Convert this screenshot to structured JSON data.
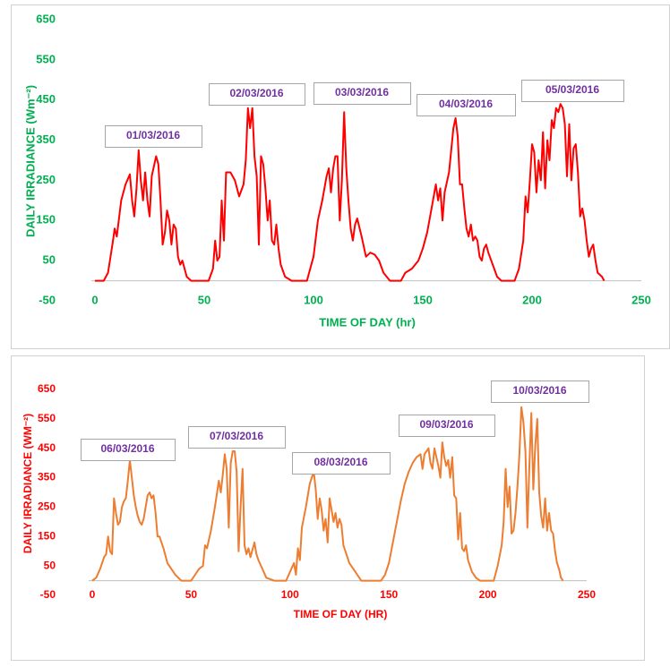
{
  "chart_data": [
    {
      "type": "line",
      "y_label": "DAILY IRRADIANCE (Wm⁻²)",
      "x_label": "TIME OF DAY (hr)",
      "color": "#ff0000",
      "axis_color": "#00b050",
      "annotation_color": "#7030a0",
      "annotations": [
        "01/03/2016",
        "02/03/2016",
        "03/03/2016",
        "04/03/2016",
        "05/03/2016"
      ],
      "xlim": [
        0,
        250
      ],
      "xticks": [
        0,
        50,
        100,
        150,
        200,
        250
      ],
      "ylim": [
        -50,
        650
      ],
      "yticks": [
        -50,
        50,
        150,
        250,
        350,
        450,
        550,
        650
      ],
      "x": [
        0,
        4,
        6,
        8,
        9,
        10,
        12,
        14,
        16,
        17,
        18,
        19,
        20,
        21,
        22,
        23,
        24,
        25,
        26,
        28,
        29,
        30,
        31,
        32,
        33,
        34,
        35,
        36,
        37,
        38,
        39,
        40,
        42,
        44,
        52,
        54,
        55,
        56,
        57,
        58,
        59,
        60,
        62,
        64,
        66,
        68,
        69,
        70,
        71,
        72,
        73,
        74,
        75,
        76,
        77,
        78,
        79,
        80,
        81,
        82,
        83,
        84,
        85,
        87,
        90,
        97,
        98,
        100,
        102,
        104,
        106,
        107,
        108,
        109,
        110,
        111,
        112,
        113,
        114,
        115,
        116,
        117,
        118,
        119,
        120,
        122,
        124,
        126,
        128,
        130,
        132,
        135,
        140,
        142,
        145,
        148,
        150,
        152,
        154,
        156,
        157,
        158,
        159,
        160,
        162,
        164,
        165,
        166,
        167,
        168,
        169,
        170,
        171,
        172,
        173,
        174,
        175,
        176,
        177,
        178,
        179,
        180,
        182,
        184,
        186,
        192,
        194,
        196,
        197,
        198,
        199,
        200,
        201,
        202,
        203,
        204,
        205,
        206,
        207,
        208,
        209,
        210,
        211,
        212,
        213,
        214,
        215,
        216,
        217,
        218,
        219,
        220,
        221,
        222,
        223,
        224,
        225,
        226,
        227,
        228,
        229,
        230,
        232,
        233
      ],
      "values": [
        0,
        0,
        20,
        90,
        130,
        110,
        200,
        240,
        265,
        200,
        160,
        230,
        325,
        250,
        200,
        270,
        200,
        160,
        260,
        310,
        290,
        200,
        90,
        120,
        175,
        150,
        90,
        140,
        130,
        60,
        40,
        50,
        10,
        0,
        0,
        30,
        100,
        50,
        60,
        200,
        100,
        270,
        270,
        250,
        210,
        240,
        300,
        430,
        380,
        430,
        310,
        260,
        90,
        310,
        290,
        230,
        150,
        200,
        100,
        90,
        140,
        80,
        40,
        10,
        0,
        0,
        20,
        60,
        150,
        200,
        260,
        280,
        220,
        280,
        310,
        310,
        150,
        250,
        420,
        280,
        200,
        130,
        100,
        140,
        155,
        110,
        60,
        70,
        65,
        50,
        20,
        0,
        0,
        20,
        30,
        50,
        80,
        120,
        180,
        240,
        200,
        230,
        150,
        220,
        270,
        380,
        405,
        360,
        240,
        240,
        180,
        130,
        110,
        140,
        100,
        110,
        100,
        60,
        50,
        80,
        90,
        70,
        40,
        10,
        0,
        0,
        30,
        100,
        210,
        170,
        250,
        340,
        320,
        220,
        300,
        250,
        370,
        230,
        350,
        300,
        400,
        380,
        430,
        420,
        440,
        430,
        390,
        260,
        390,
        250,
        330,
        340,
        270,
        160,
        180,
        150,
        100,
        60,
        80,
        90,
        50,
        20,
        10,
        0
      ]
    },
    {
      "type": "line",
      "y_label": "DAILY IRRADIANCE (WM⁻²)",
      "x_label": "TIME OF DAY (HR)",
      "color": "#ed7d31",
      "axis_color": "#ff0000",
      "annotation_color": "#7030a0",
      "annotations": [
        "06/03/2016",
        "07/03/2016",
        "08/03/2016",
        "09/03/2016",
        "10/03/2016"
      ],
      "xlim": [
        0,
        250
      ],
      "xticks": [
        0,
        50,
        100,
        150,
        200,
        250
      ],
      "ylim": [
        -50,
        650
      ],
      "yticks": [
        -50,
        50,
        150,
        250,
        350,
        450,
        550,
        650
      ],
      "x": [
        0,
        2,
        4,
        6,
        7,
        8,
        9,
        10,
        11,
        12,
        13,
        14,
        15,
        16,
        17,
        18,
        19,
        20,
        21,
        22,
        23,
        24,
        25,
        26,
        27,
        28,
        29,
        30,
        31,
        32,
        33,
        34,
        36,
        38,
        40,
        42,
        45,
        50,
        52,
        54,
        56,
        57,
        58,
        60,
        62,
        64,
        65,
        66,
        67,
        68,
        69,
        70,
        71,
        72,
        73,
        74,
        75,
        76,
        77,
        78,
        79,
        80,
        82,
        83,
        84,
        86,
        88,
        92,
        98,
        100,
        102,
        103,
        104,
        105,
        106,
        108,
        110,
        112,
        113,
        114,
        115,
        116,
        117,
        118,
        119,
        120,
        121,
        122,
        123,
        124,
        125,
        126,
        127,
        128,
        130,
        132,
        134,
        136,
        146,
        148,
        150,
        152,
        154,
        156,
        158,
        160,
        162,
        164,
        166,
        167,
        168,
        170,
        171,
        172,
        173,
        174,
        175,
        176,
        177,
        178,
        179,
        180,
        181,
        182,
        183,
        184,
        185,
        186,
        187,
        188,
        189,
        190,
        192,
        194,
        196,
        203,
        205,
        207,
        208,
        209,
        210,
        211,
        212,
        213,
        214,
        215,
        216,
        217,
        218,
        219,
        220,
        221,
        222,
        223,
        224,
        225,
        226,
        227,
        228,
        229,
        230,
        231,
        232,
        233,
        234,
        235,
        236,
        237,
        238
      ],
      "values": [
        0,
        10,
        40,
        80,
        90,
        150,
        100,
        90,
        280,
        230,
        190,
        200,
        250,
        270,
        280,
        340,
        410,
        350,
        290,
        250,
        220,
        200,
        190,
        210,
        250,
        290,
        300,
        280,
        290,
        230,
        150,
        150,
        110,
        60,
        40,
        20,
        0,
        0,
        20,
        40,
        50,
        120,
        110,
        170,
        250,
        340,
        300,
        360,
        430,
        380,
        180,
        400,
        440,
        440,
        370,
        100,
        250,
        380,
        120,
        90,
        110,
        80,
        130,
        90,
        70,
        40,
        10,
        0,
        0,
        30,
        60,
        20,
        110,
        70,
        180,
        250,
        330,
        370,
        310,
        210,
        280,
        240,
        170,
        210,
        130,
        280,
        240,
        200,
        230,
        180,
        210,
        190,
        120,
        100,
        60,
        40,
        20,
        0,
        0,
        20,
        60,
        130,
        200,
        270,
        330,
        370,
        400,
        420,
        430,
        380,
        430,
        450,
        400,
        380,
        450,
        420,
        390,
        350,
        470,
        420,
        390,
        410,
        350,
        420,
        290,
        280,
        140,
        230,
        110,
        100,
        120,
        70,
        30,
        10,
        0,
        0,
        50,
        120,
        200,
        380,
        250,
        320,
        160,
        170,
        230,
        320,
        430,
        590,
        540,
        440,
        180,
        390,
        570,
        310,
        460,
        550,
        300,
        220,
        180,
        280,
        170,
        230,
        170,
        160,
        100,
        60,
        40,
        10,
        0
      ]
    }
  ]
}
